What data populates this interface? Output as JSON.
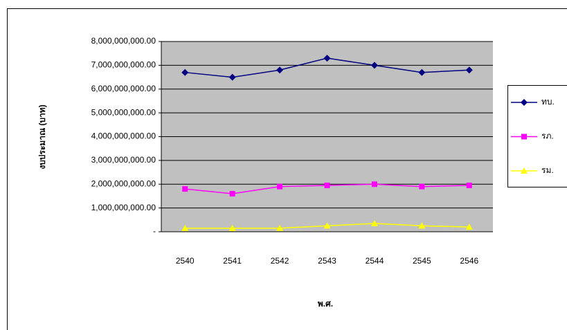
{
  "chart_data": {
    "type": "line",
    "x_label": "พ.ศ.",
    "y_label": "งบประมาณ (บาท)",
    "categories": [
      "2540",
      "2541",
      "2542",
      "2543",
      "2544",
      "2545",
      "2546"
    ],
    "series": [
      {
        "name": "ทบ.",
        "color": "#000080",
        "values": [
          6700000000,
          6500000000,
          6800000000,
          7300000000,
          7000000000,
          6700000000,
          6800000000
        ]
      },
      {
        "name": "รภ.",
        "color": "#ff00ff",
        "values": [
          1800000000,
          1600000000,
          1900000000,
          1950000000,
          2000000000,
          1900000000,
          1950000000
        ]
      },
      {
        "name": "รม.",
        "color": "#ffff00",
        "values": [
          150000000,
          150000000,
          150000000,
          250000000,
          350000000,
          250000000,
          200000000
        ]
      }
    ],
    "ylim": [
      0,
      8000000000
    ],
    "yticks": [
      {
        "value": 0,
        "label": "-"
      },
      {
        "value": 1000000000,
        "label": "1,000,000,000.00"
      },
      {
        "value": 2000000000,
        "label": "2,000,000,000.00"
      },
      {
        "value": 3000000000,
        "label": "3,000,000,000.00"
      },
      {
        "value": 4000000000,
        "label": "4,000,000,000.00"
      },
      {
        "value": 5000000000,
        "label": "5,000,000,000.00"
      },
      {
        "value": 6000000000,
        "label": "6,000,000,000.00"
      },
      {
        "value": 7000000000,
        "label": "7,000,000,000.00"
      },
      {
        "value": 8000000000,
        "label": "8,000,000,000.00"
      }
    ],
    "grid": true,
    "legend": "right",
    "plot_background": "#c0c0c0"
  }
}
